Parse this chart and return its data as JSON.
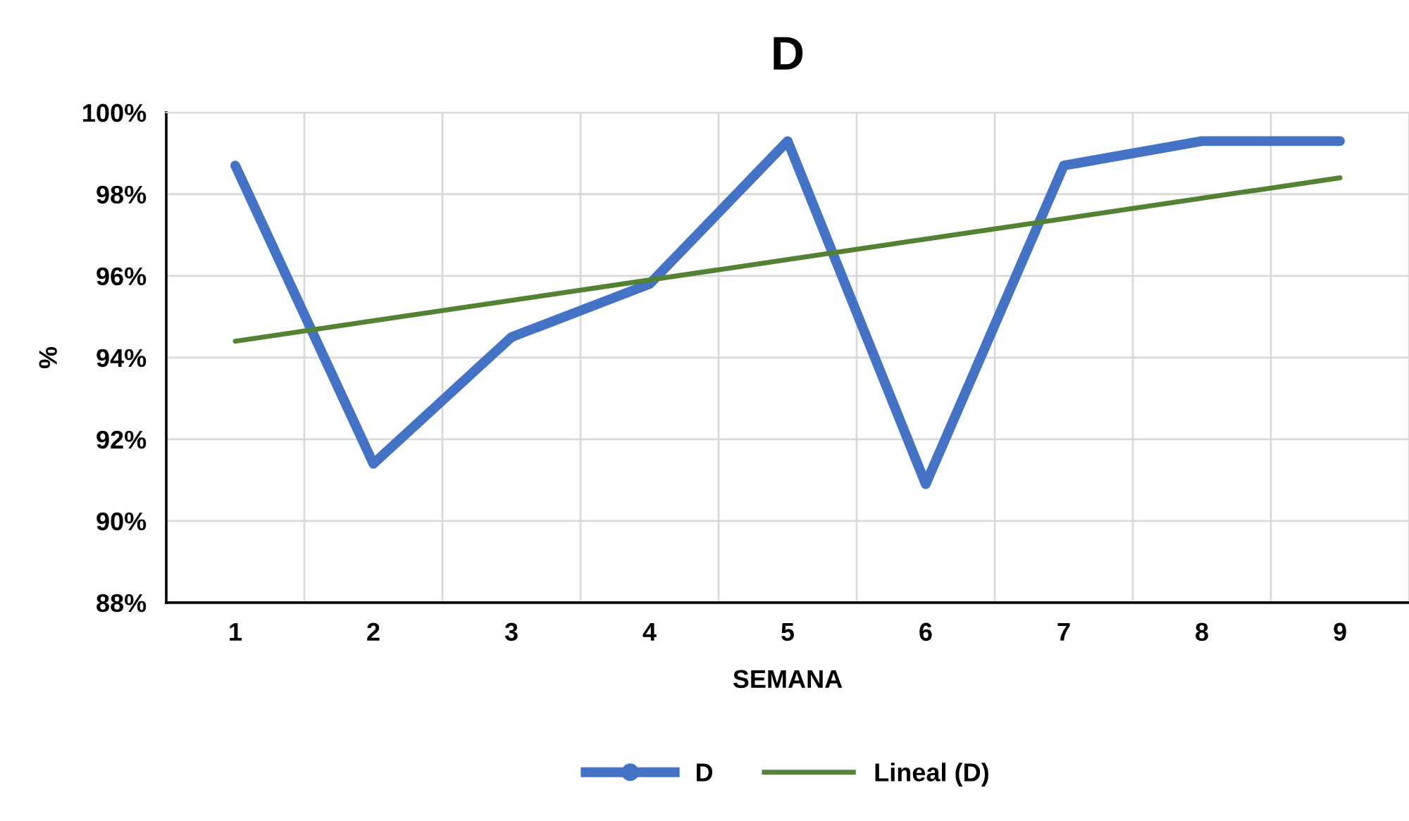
{
  "chart_data": {
    "type": "line",
    "title": "D",
    "xlabel": "SEMANA",
    "ylabel": "%",
    "categories": [
      "1",
      "2",
      "3",
      "4",
      "5",
      "6",
      "7",
      "8",
      "9"
    ],
    "series": [
      {
        "name": "D",
        "color": "#4472c4",
        "values": [
          98.7,
          91.4,
          94.5,
          95.8,
          99.3,
          90.9,
          98.7,
          99.3,
          99.3
        ]
      },
      {
        "name": "Lineal (D)",
        "color": "#548235",
        "x": [
          "1",
          "9"
        ],
        "values": [
          94.4,
          98.4
        ]
      }
    ],
    "ylim": [
      88,
      100
    ],
    "yticks": [
      {
        "value": 88,
        "label": "88%"
      },
      {
        "value": 90,
        "label": "90%"
      },
      {
        "value": 92,
        "label": "92%"
      },
      {
        "value": 94,
        "label": "94%"
      },
      {
        "value": 96,
        "label": "96%"
      },
      {
        "value": 98,
        "label": "98%"
      },
      {
        "value": 100,
        "label": "100%"
      }
    ],
    "grid": true,
    "legend": "bottom"
  }
}
